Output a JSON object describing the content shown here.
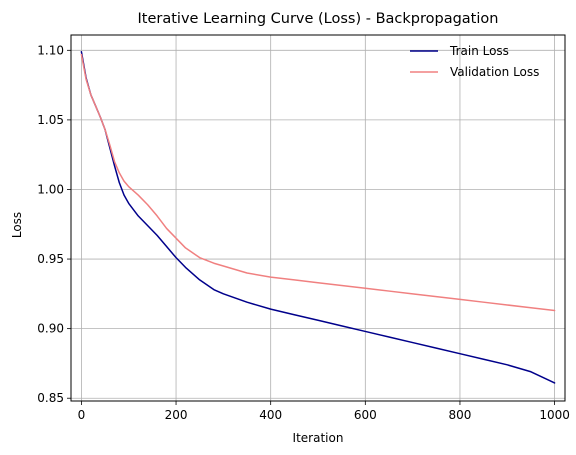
{
  "chart_data": {
    "type": "line",
    "title": "Iterative Learning Curve (Loss) - Backpropagation",
    "xlabel": "Iteration",
    "ylabel": "Loss",
    "xlim": [
      -22,
      1022
    ],
    "ylim": [
      0.848,
      1.111
    ],
    "xticks": [
      0,
      200,
      400,
      600,
      800,
      1000
    ],
    "yticks": [
      0.85,
      0.9,
      0.95,
      1.0,
      1.05,
      1.1
    ],
    "ytick_labels": [
      "0.85",
      "0.90",
      "0.95",
      "1.00",
      "1.05",
      "1.10"
    ],
    "grid": true,
    "legend_position": "top-right",
    "series": [
      {
        "name": "Train Loss",
        "color": "#00008b",
        "x": [
          0,
          10,
          20,
          30,
          40,
          50,
          60,
          70,
          80,
          90,
          100,
          120,
          140,
          160,
          180,
          200,
          220,
          250,
          280,
          300,
          350,
          400,
          450,
          500,
          550,
          600,
          650,
          700,
          750,
          800,
          850,
          900,
          950,
          1000
        ],
        "y": [
          1.099,
          1.08,
          1.068,
          1.06,
          1.052,
          1.043,
          1.03,
          1.017,
          1.005,
          0.996,
          0.99,
          0.981,
          0.974,
          0.967,
          0.959,
          0.951,
          0.944,
          0.935,
          0.928,
          0.925,
          0.919,
          0.914,
          0.91,
          0.906,
          0.902,
          0.898,
          0.894,
          0.89,
          0.886,
          0.882,
          0.878,
          0.874,
          0.869,
          0.861
        ]
      },
      {
        "name": "Validation Loss",
        "color": "#f08080",
        "x": [
          0,
          10,
          20,
          30,
          40,
          50,
          60,
          70,
          80,
          90,
          100,
          120,
          140,
          160,
          180,
          200,
          220,
          250,
          280,
          300,
          350,
          400,
          450,
          500,
          550,
          600,
          650,
          700,
          750,
          800,
          850,
          900,
          950,
          1000
        ],
        "y": [
          1.097,
          1.079,
          1.068,
          1.06,
          1.052,
          1.043,
          1.032,
          1.02,
          1.012,
          1.006,
          1.002,
          0.996,
          0.989,
          0.981,
          0.972,
          0.965,
          0.958,
          0.951,
          0.947,
          0.945,
          0.94,
          0.937,
          0.935,
          0.933,
          0.931,
          0.929,
          0.927,
          0.925,
          0.923,
          0.921,
          0.919,
          0.917,
          0.915,
          0.913
        ]
      }
    ]
  }
}
